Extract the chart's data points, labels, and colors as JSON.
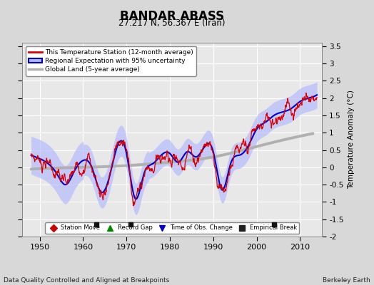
{
  "title": "BANDAR ABASS",
  "subtitle": "27.217 N, 56.367 E (Iran)",
  "xlabel_bottom": "Data Quality Controlled and Aligned at Breakpoints",
  "xlabel_right": "Berkeley Earth",
  "ylabel": "Temperature Anomaly (°C)",
  "xlim": [
    1946,
    2015
  ],
  "ylim": [
    -2.0,
    3.6
  ],
  "yticks": [
    -2,
    -1.5,
    -1,
    -0.5,
    0,
    0.5,
    1,
    1.5,
    2,
    2.5,
    3,
    3.5
  ],
  "xticks": [
    1950,
    1960,
    1970,
    1980,
    1990,
    2000,
    2010
  ],
  "bg_color": "#d8d8d8",
  "plot_bg_color": "#e8e8e8",
  "grid_color": "#ffffff",
  "station_line_color": "#dd0000",
  "regional_line_color": "#0000cc",
  "regional_fill_color": "#b0b8ff",
  "global_line_color": "#b0b0b0",
  "legend_entries": [
    "This Temperature Station (12-month average)",
    "Regional Expectation with 95% uncertainty",
    "Global Land (5-year average)"
  ],
  "marker_legend": [
    {
      "label": "Station Move",
      "color": "#cc0000",
      "marker": "D"
    },
    {
      "label": "Record Gap",
      "color": "#008800",
      "marker": "^"
    },
    {
      "label": "Time of Obs. Change",
      "color": "#0000cc",
      "marker": "v"
    },
    {
      "label": "Empirical Break",
      "color": "#222222",
      "marker": "s"
    }
  ],
  "empirical_breaks": [
    1963,
    1971,
    2004
  ],
  "station_move": [],
  "record_gap": [],
  "time_obs_change": [],
  "vertical_line_year": 1999
}
